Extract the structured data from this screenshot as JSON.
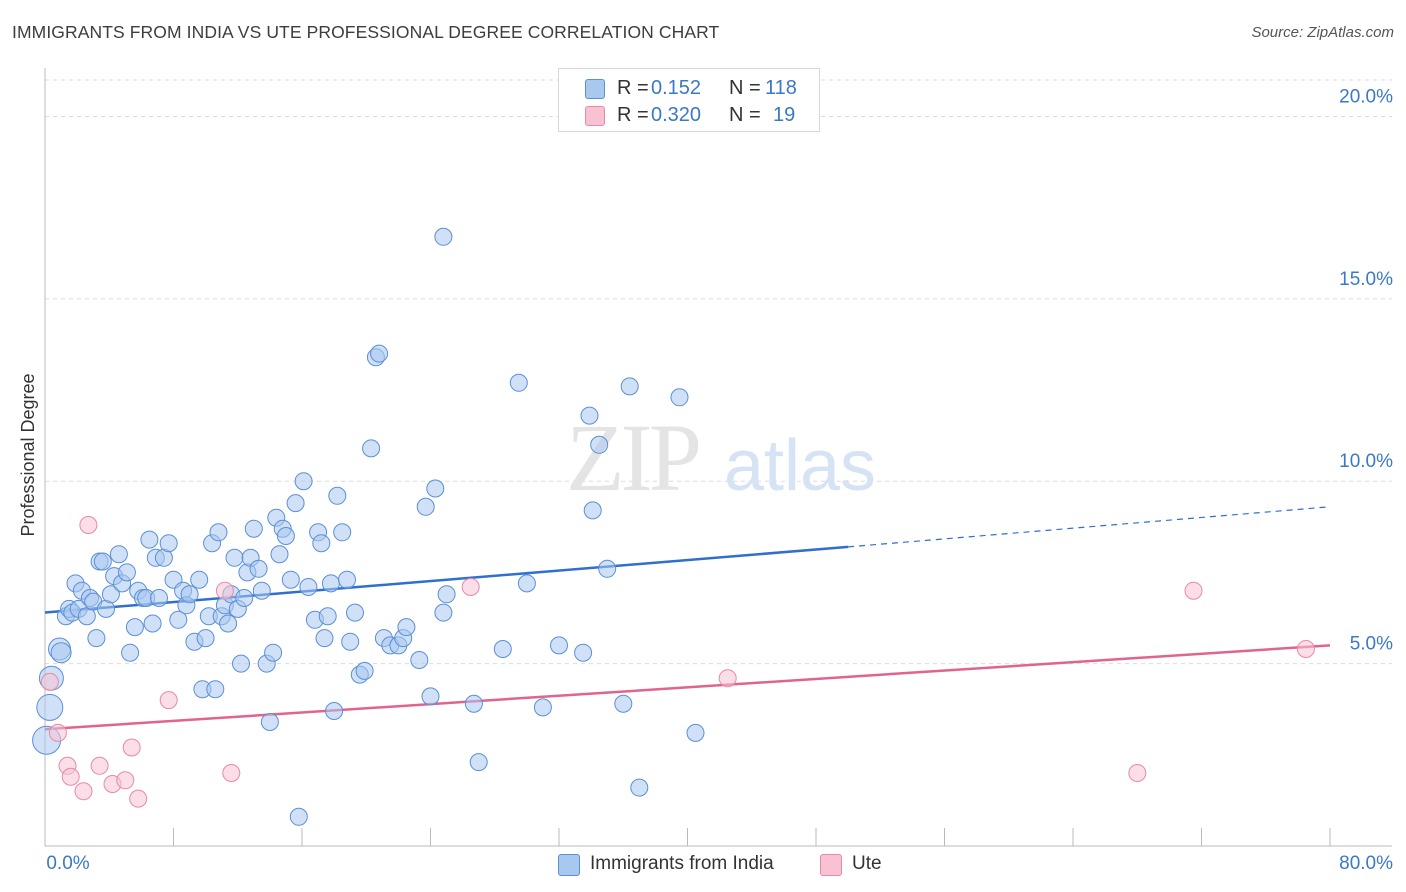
{
  "title": "IMMIGRANTS FROM INDIA VS UTE PROFESSIONAL DEGREE CORRELATION CHART",
  "source": "Source: ZipAtlas.com",
  "watermark": {
    "zip": "ZIP",
    "atlas": "atlas"
  },
  "legend_top": {
    "rows": [
      {
        "r_label": "R =",
        "r_value": "0.152",
        "n_label": "N =",
        "n_value": "118",
        "color": "#a9c8f0",
        "border": "#5b8fd6"
      },
      {
        "r_label": "R =",
        "r_value": "0.320",
        "n_label": "N =",
        "n_value": "19",
        "color": "#f8c2d3",
        "border": "#e889a8"
      }
    ]
  },
  "legend_bottom": {
    "items": [
      {
        "label": "Immigrants from India",
        "color": "#a9c8f0",
        "border": "#5b8fd6"
      },
      {
        "label": "Ute",
        "color": "#f8c2d3",
        "border": "#e889a8"
      }
    ]
  },
  "chart_data": {
    "type": "scatter",
    "title": "IMMIGRANTS FROM INDIA VS UTE PROFESSIONAL DEGREE CORRELATION CHART",
    "xlabel": "",
    "ylabel": "Professional Degree",
    "xlim": [
      0,
      80
    ],
    "ylim": [
      0,
      21
    ],
    "x_tick_labels": [
      "0.0%",
      "80.0%"
    ],
    "y_ticks": [
      5,
      10,
      15,
      20
    ],
    "y_tick_labels": [
      "5.0%",
      "10.0%",
      "15.0%",
      "20.0%"
    ],
    "grid": true,
    "legend_position": "top-center",
    "series": [
      {
        "name": "Immigrants from India",
        "color": "#a9c8f0",
        "border": "#5b8fd6",
        "line_color": "#2f6fcf",
        "trend": {
          "x0": 0,
          "y0": 6.4,
          "x1": 50,
          "y1": 8.2,
          "dashed_to_x": 80,
          "dashed_to_y": 9.3
        },
        "points": [
          [
            0.1,
            2.9
          ],
          [
            0.3,
            3.8
          ],
          [
            0.4,
            4.6
          ],
          [
            0.9,
            5.4
          ],
          [
            1.0,
            5.3
          ],
          [
            1.3,
            6.3
          ],
          [
            1.5,
            6.5
          ],
          [
            1.7,
            6.4
          ],
          [
            1.9,
            7.2
          ],
          [
            2.1,
            6.5
          ],
          [
            2.3,
            7.0
          ],
          [
            2.6,
            6.3
          ],
          [
            2.8,
            6.8
          ],
          [
            3.0,
            6.7
          ],
          [
            3.2,
            5.7
          ],
          [
            3.4,
            7.8
          ],
          [
            3.6,
            7.8
          ],
          [
            3.8,
            6.5
          ],
          [
            4.1,
            6.9
          ],
          [
            4.3,
            7.4
          ],
          [
            4.6,
            8.0
          ],
          [
            4.8,
            7.2
          ],
          [
            5.1,
            7.5
          ],
          [
            5.3,
            5.3
          ],
          [
            5.6,
            6.0
          ],
          [
            5.8,
            7.0
          ],
          [
            6.1,
            6.8
          ],
          [
            6.3,
            6.8
          ],
          [
            6.5,
            8.4
          ],
          [
            6.7,
            6.1
          ],
          [
            6.9,
            7.9
          ],
          [
            7.1,
            6.8
          ],
          [
            7.4,
            7.9
          ],
          [
            7.7,
            8.3
          ],
          [
            8.0,
            7.3
          ],
          [
            8.3,
            6.2
          ],
          [
            8.6,
            7.0
          ],
          [
            8.8,
            6.6
          ],
          [
            9.0,
            6.9
          ],
          [
            9.3,
            5.6
          ],
          [
            9.6,
            7.3
          ],
          [
            9.8,
            4.3
          ],
          [
            10.0,
            5.7
          ],
          [
            10.2,
            6.3
          ],
          [
            10.4,
            8.3
          ],
          [
            10.6,
            4.3
          ],
          [
            10.8,
            8.6
          ],
          [
            11.0,
            6.3
          ],
          [
            11.2,
            6.6
          ],
          [
            11.4,
            6.1
          ],
          [
            11.6,
            6.9
          ],
          [
            11.8,
            7.9
          ],
          [
            12.0,
            6.5
          ],
          [
            12.2,
            5.0
          ],
          [
            12.4,
            6.8
          ],
          [
            12.6,
            7.5
          ],
          [
            12.8,
            7.9
          ],
          [
            13.0,
            8.7
          ],
          [
            13.3,
            7.6
          ],
          [
            13.5,
            7.0
          ],
          [
            13.8,
            5.0
          ],
          [
            14.0,
            3.4
          ],
          [
            14.2,
            5.3
          ],
          [
            14.4,
            9.0
          ],
          [
            14.6,
            8.0
          ],
          [
            14.8,
            8.7
          ],
          [
            15.0,
            8.5
          ],
          [
            15.3,
            7.3
          ],
          [
            15.6,
            9.4
          ],
          [
            15.8,
            0.8
          ],
          [
            16.1,
            10.0
          ],
          [
            16.4,
            7.1
          ],
          [
            16.8,
            6.2
          ],
          [
            17.0,
            8.6
          ],
          [
            17.2,
            8.3
          ],
          [
            17.4,
            5.7
          ],
          [
            17.6,
            6.3
          ],
          [
            17.8,
            7.2
          ],
          [
            18.0,
            3.7
          ],
          [
            18.2,
            9.6
          ],
          [
            18.5,
            8.6
          ],
          [
            18.8,
            7.3
          ],
          [
            19.0,
            5.6
          ],
          [
            19.3,
            6.4
          ],
          [
            19.6,
            4.7
          ],
          [
            19.9,
            4.8
          ],
          [
            20.3,
            10.9
          ],
          [
            20.6,
            13.4
          ],
          [
            20.8,
            13.5
          ],
          [
            21.1,
            5.7
          ],
          [
            21.5,
            5.5
          ],
          [
            22.0,
            5.5
          ],
          [
            22.3,
            5.7
          ],
          [
            22.5,
            6.0
          ],
          [
            23.3,
            5.1
          ],
          [
            23.7,
            9.3
          ],
          [
            24.0,
            4.1
          ],
          [
            24.3,
            9.8
          ],
          [
            24.8,
            6.4
          ],
          [
            25.0,
            6.9
          ],
          [
            24.8,
            16.7
          ],
          [
            26.7,
            3.9
          ],
          [
            27.0,
            2.3
          ],
          [
            28.5,
            5.4
          ],
          [
            29.5,
            12.7
          ],
          [
            30.0,
            7.2
          ],
          [
            31.0,
            3.8
          ],
          [
            32.0,
            5.5
          ],
          [
            33.5,
            5.3
          ],
          [
            33.9,
            11.8
          ],
          [
            34.1,
            9.2
          ],
          [
            34.5,
            11.0
          ],
          [
            35.0,
            7.6
          ],
          [
            36.0,
            3.9
          ],
          [
            36.4,
            12.6
          ],
          [
            37.0,
            1.6
          ],
          [
            39.5,
            12.3
          ],
          [
            40.5,
            3.1
          ]
        ]
      },
      {
        "name": "Ute",
        "color": "#f8c2d3",
        "border": "#e889a8",
        "line_color": "#e0648e",
        "trend": {
          "x0": 0,
          "y0": 3.2,
          "x1": 80,
          "y1": 5.5
        },
        "points": [
          [
            0.3,
            4.5
          ],
          [
            0.8,
            3.1
          ],
          [
            1.4,
            2.2
          ],
          [
            1.6,
            1.9
          ],
          [
            2.4,
            1.5
          ],
          [
            2.7,
            8.8
          ],
          [
            3.4,
            2.2
          ],
          [
            4.2,
            1.7
          ],
          [
            5.0,
            1.8
          ],
          [
            5.4,
            2.7
          ],
          [
            5.8,
            1.3
          ],
          [
            7.7,
            4.0
          ],
          [
            11.2,
            7.0
          ],
          [
            11.6,
            2.0
          ],
          [
            26.5,
            7.1
          ],
          [
            42.5,
            4.6
          ],
          [
            68.0,
            2.0
          ],
          [
            71.5,
            7.0
          ],
          [
            78.5,
            5.4
          ]
        ]
      }
    ]
  }
}
